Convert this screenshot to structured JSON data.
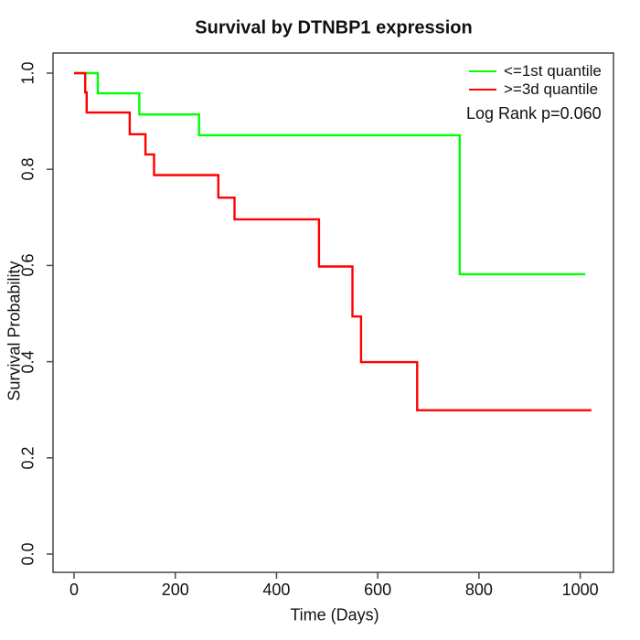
{
  "chart_data": {
    "type": "line",
    "subtype": "kaplan-meier-step",
    "title": "Survival by DTNBP1 expression",
    "xlabel": "Time (Days)",
    "ylabel": "Survival Probability",
    "xlim": [
      0,
      1022
    ],
    "ylim": [
      0.0,
      1.0
    ],
    "xticks": [
      "0",
      "200",
      "400",
      "600",
      "800",
      "1000"
    ],
    "yticks": [
      "0.0",
      "0.2",
      "0.4",
      "0.6",
      "0.8",
      "1.0"
    ],
    "grid": false,
    "legend_position": "top-right",
    "annotation": "Log Rank p=0.060",
    "series": [
      {
        "name": "<=1st quantile",
        "color": "#00ff00",
        "points": [
          [
            0,
            1.0
          ],
          [
            47,
            0.958
          ],
          [
            129,
            0.914
          ],
          [
            247,
            0.871
          ],
          [
            762,
            0.582
          ]
        ],
        "end_time": 1010
      },
      {
        "name": ">=3d quantile",
        "color": "#ff0000",
        "points": [
          [
            0,
            1.0
          ],
          [
            22,
            0.96
          ],
          [
            25,
            0.918
          ],
          [
            110,
            0.873
          ],
          [
            141,
            0.831
          ],
          [
            158,
            0.788
          ],
          [
            285,
            0.741
          ],
          [
            317,
            0.696
          ],
          [
            484,
            0.598
          ],
          [
            550,
            0.494
          ],
          [
            567,
            0.399
          ],
          [
            678,
            0.299
          ]
        ],
        "end_time": 1022
      }
    ]
  },
  "style": {
    "axis_color": "#474747",
    "text_color": "#111111",
    "line_width": 2.4
  }
}
